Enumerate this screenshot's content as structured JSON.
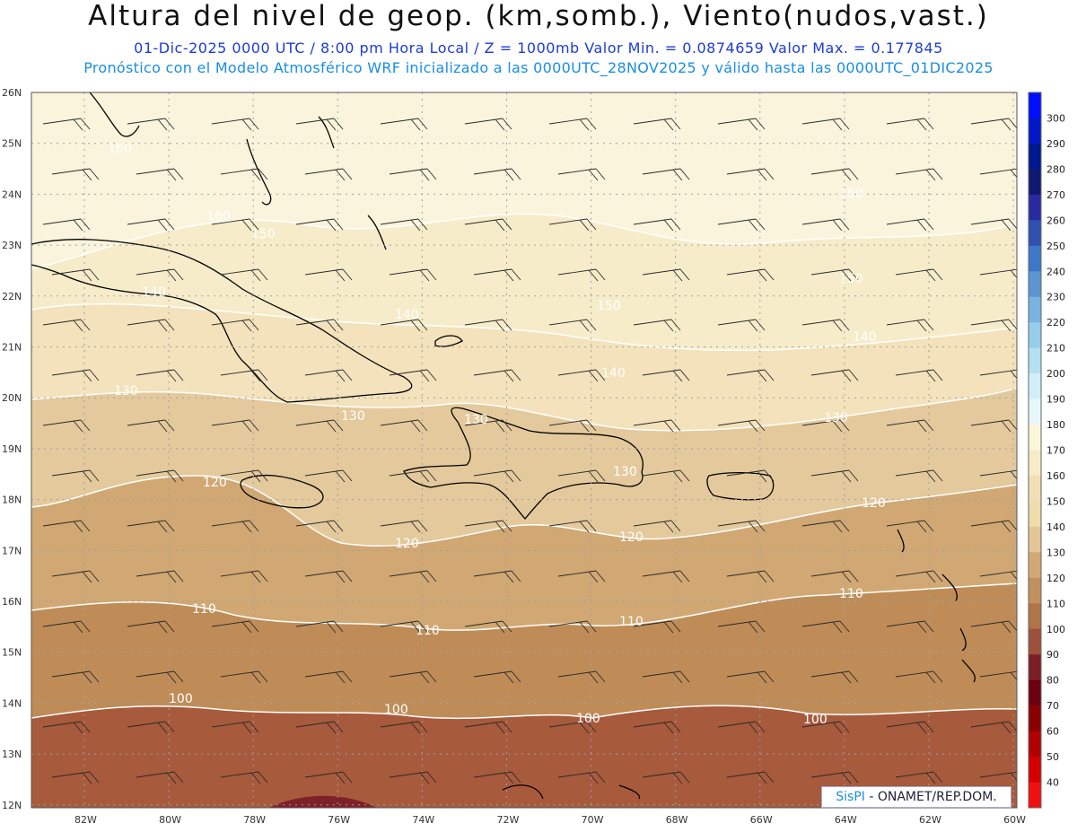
{
  "title": "Altura del nivel de geop. (km,somb.), Viento(nudos,vast.)",
  "subtitle": "01-Dic-2025  0000 UTC / 8:00 pm Hora Local / Z = 1000mb  Valor Min. = 0.0874659  Valor Max. = 0.177845",
  "model_info": "Pronóstico con el Modelo Atmosférico WRF inicializado a las 0000UTC_28NOV2025 y válido hasta las  0000UTC_01DIC2025",
  "credit": {
    "brand": "SisPI",
    "org": " - ONAMET/REP.DOM."
  },
  "axes": {
    "lat_labels": [
      "26N",
      "25N",
      "24N",
      "23N",
      "22N",
      "21N",
      "20N",
      "19N",
      "18N",
      "17N",
      "16N",
      "15N",
      "14N",
      "13N",
      "12N"
    ],
    "lon_labels": [
      "82W",
      "80W",
      "78W",
      "76W",
      "74W",
      "72W",
      "70W",
      "68W",
      "66W",
      "64W",
      "62W",
      "60W"
    ]
  },
  "colorbar": {
    "labels": [
      "300",
      "290",
      "280",
      "270",
      "260",
      "250",
      "240",
      "230",
      "220",
      "210",
      "200",
      "190",
      "180",
      "170",
      "160",
      "150",
      "140",
      "130",
      "120",
      "110",
      "100",
      "90",
      "80",
      "70",
      "60",
      "50",
      "40"
    ],
    "colors": [
      "#0010ff",
      "#0018c8",
      "#001890",
      "#101870",
      "#2a2aa0",
      "#3050b0",
      "#3c78c8",
      "#5a96d0",
      "#78b4e0",
      "#96cdeb",
      "#b4e1f2",
      "#d2eef8",
      "#e8f8fa",
      "#fbf6da",
      "#f8ebc8",
      "#f2dfb6",
      "#eedcab",
      "#e3c597",
      "#d2a872",
      "#c1915c",
      "#b07447",
      "#9d513a",
      "#7c1e26",
      "#6c0010",
      "#8a0000",
      "#b20000",
      "#d40000",
      "#f01010"
    ]
  },
  "contour_labels": [
    "100",
    "110",
    "120",
    "130",
    "140",
    "150",
    "160"
  ]
}
